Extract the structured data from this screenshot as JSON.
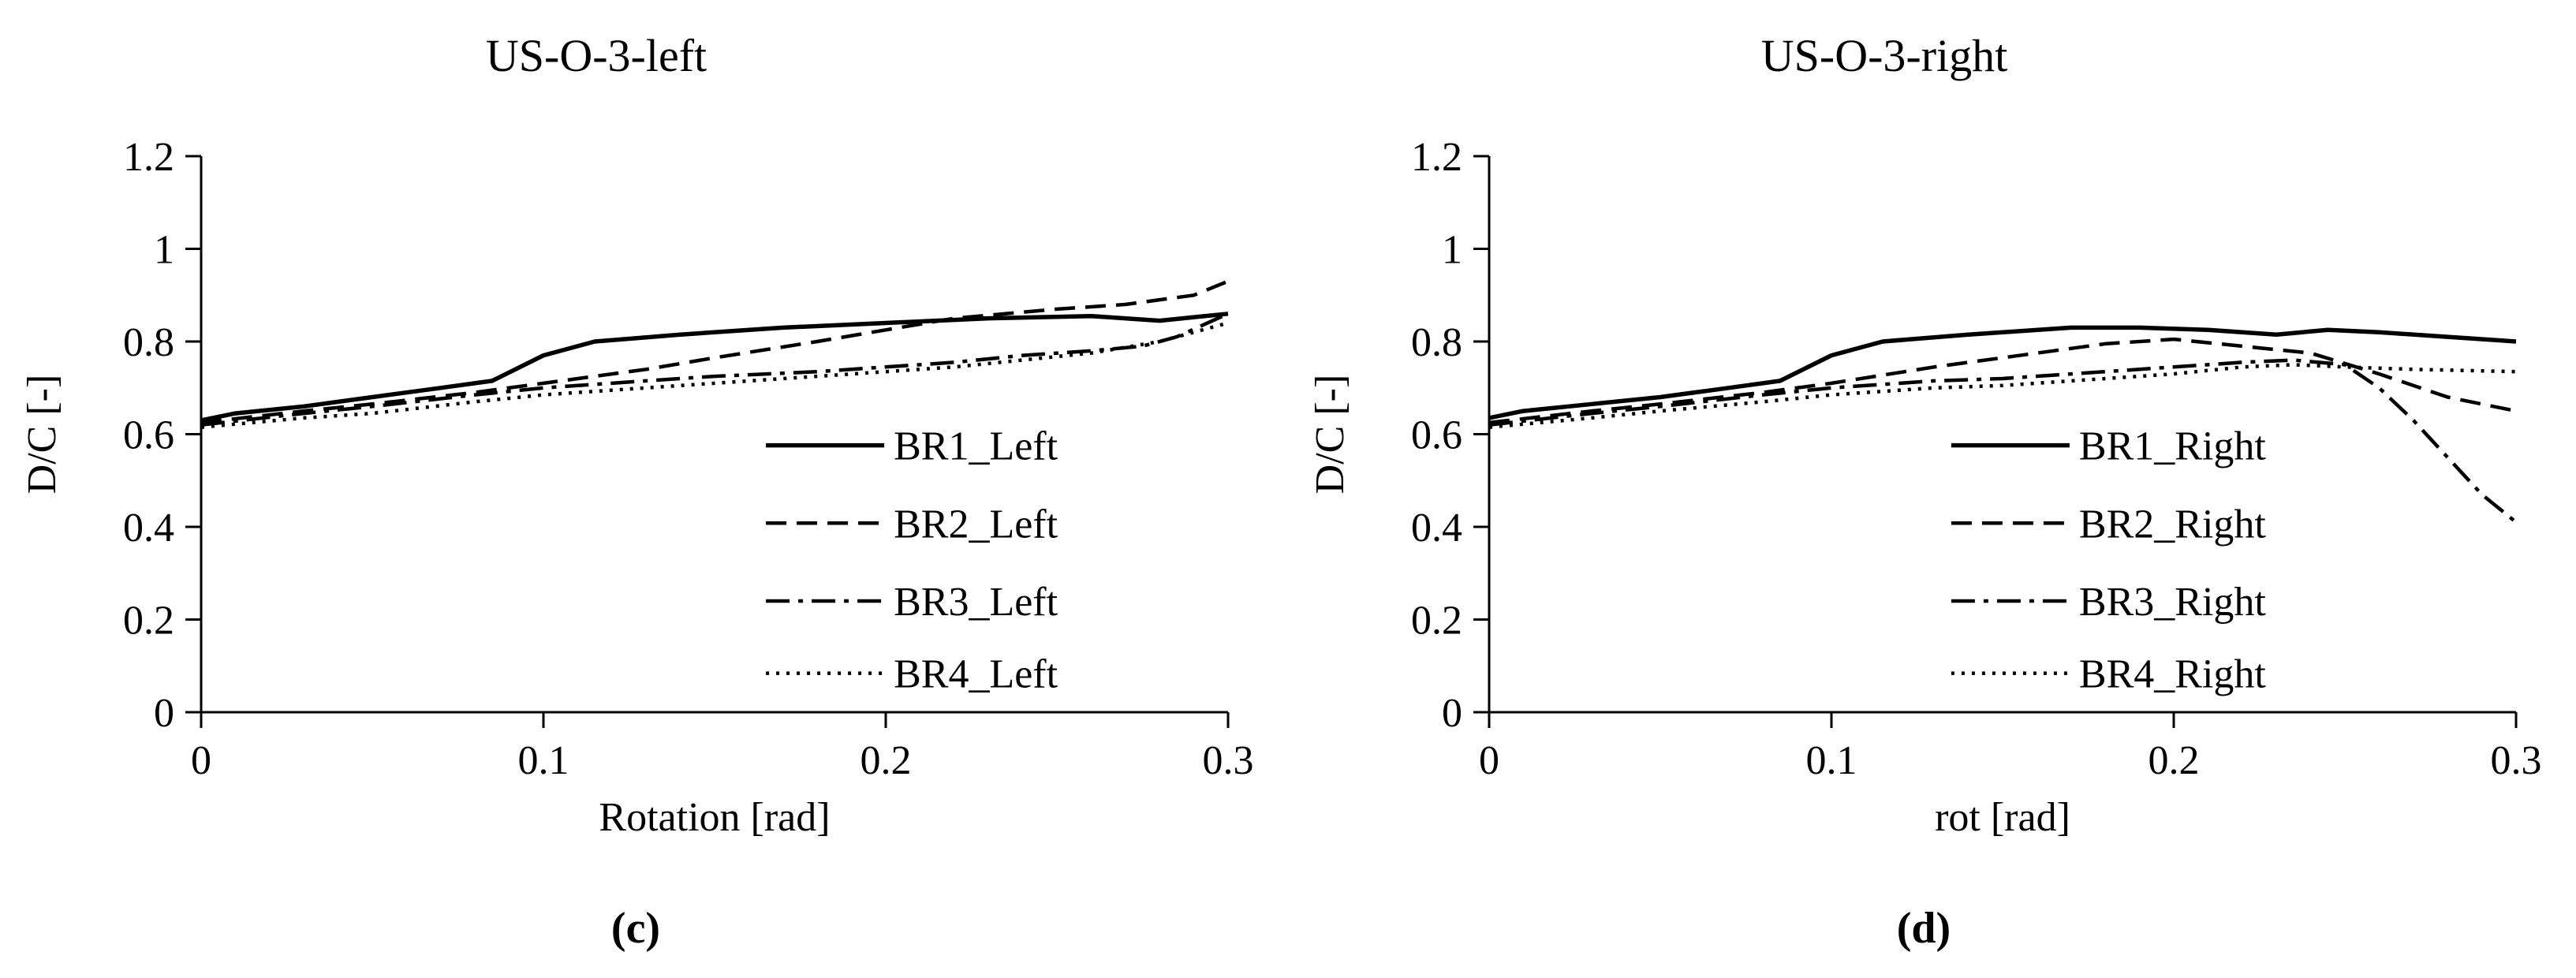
{
  "figure": {
    "description": "Two-panel line chart figure comparing D/C ratio versus rotation for four bearings (left and right)"
  },
  "chart_data": [
    {
      "type": "line",
      "title": "US-O-3-left",
      "sub_label": "(c)",
      "xlabel": "Rotation [rad]",
      "ylabel": "D/C [-]",
      "xlim": [
        0,
        0.3
      ],
      "ylim": [
        0,
        1.2
      ],
      "xticks": [
        "0",
        "0.1",
        "0.2",
        "0.3"
      ],
      "yticks": [
        "0",
        "0.2",
        "0.4",
        "0.6",
        "0.8",
        "1",
        "1.2"
      ],
      "grid": false,
      "line_color": "#000000",
      "legend": {
        "position": "inside-right-lower",
        "x_frac": 0.55,
        "row_fracs": [
          0.52,
          0.66,
          0.8,
          0.93
        ]
      },
      "series": [
        {
          "name": "BR1_Left",
          "style": "solid",
          "width": 5.5,
          "x": [
            0,
            0.01,
            0.03,
            0.05,
            0.07,
            0.085,
            0.1,
            0.115,
            0.14,
            0.17,
            0.2,
            0.23,
            0.26,
            0.28,
            0.3
          ],
          "y": [
            0.63,
            0.645,
            0.66,
            0.68,
            0.7,
            0.715,
            0.77,
            0.8,
            0.815,
            0.83,
            0.84,
            0.85,
            0.855,
            0.845,
            0.86
          ]
        },
        {
          "name": "BR2_Left",
          "style": "dashed",
          "width": 4.5,
          "x": [
            0,
            0.03,
            0.05,
            0.08,
            0.1,
            0.13,
            0.15,
            0.18,
            0.2,
            0.22,
            0.25,
            0.27,
            0.29,
            0.3
          ],
          "y": [
            0.625,
            0.65,
            0.665,
            0.69,
            0.71,
            0.74,
            0.765,
            0.8,
            0.825,
            0.85,
            0.87,
            0.88,
            0.9,
            0.93
          ]
        },
        {
          "name": "BR3_Left",
          "style": "dashdot",
          "width": 4.5,
          "x": [
            0,
            0.03,
            0.05,
            0.08,
            0.1,
            0.13,
            0.15,
            0.18,
            0.2,
            0.22,
            0.24,
            0.26,
            0.275,
            0.285,
            0.3
          ],
          "y": [
            0.62,
            0.645,
            0.66,
            0.685,
            0.7,
            0.715,
            0.725,
            0.735,
            0.745,
            0.755,
            0.77,
            0.78,
            0.79,
            0.81,
            0.86
          ]
        },
        {
          "name": "BR4_Left",
          "style": "dotted",
          "width": 4.5,
          "x": [
            0,
            0.03,
            0.05,
            0.08,
            0.1,
            0.13,
            0.15,
            0.18,
            0.2,
            0.22,
            0.24,
            0.26,
            0.28,
            0.3
          ],
          "y": [
            0.615,
            0.635,
            0.645,
            0.67,
            0.685,
            0.7,
            0.71,
            0.725,
            0.735,
            0.745,
            0.76,
            0.775,
            0.8,
            0.84
          ]
        }
      ]
    },
    {
      "type": "line",
      "title": "US-O-3-right",
      "sub_label": "(d)",
      "xlabel": "rot [rad]",
      "ylabel": "D/C [-]",
      "xlim": [
        0,
        0.3
      ],
      "ylim": [
        0,
        1.2
      ],
      "xticks": [
        "0",
        "0.1",
        "0.2",
        "0.3"
      ],
      "yticks": [
        "0",
        "0.2",
        "0.4",
        "0.6",
        "0.8",
        "1",
        "1.2"
      ],
      "grid": false,
      "line_color": "#000000",
      "legend": {
        "position": "inside-right-lower",
        "x_frac": 0.45,
        "row_fracs": [
          0.52,
          0.66,
          0.8,
          0.93
        ]
      },
      "series": [
        {
          "name": "BR1_Right",
          "style": "solid",
          "width": 5.5,
          "x": [
            0,
            0.01,
            0.03,
            0.05,
            0.07,
            0.085,
            0.1,
            0.115,
            0.14,
            0.17,
            0.19,
            0.21,
            0.23,
            0.245,
            0.26,
            0.28,
            0.3
          ],
          "y": [
            0.635,
            0.65,
            0.665,
            0.68,
            0.7,
            0.715,
            0.77,
            0.8,
            0.815,
            0.83,
            0.83,
            0.825,
            0.815,
            0.825,
            0.82,
            0.81,
            0.8
          ]
        },
        {
          "name": "BR2_Right",
          "style": "dashed",
          "width": 4.5,
          "x": [
            0,
            0.03,
            0.05,
            0.08,
            0.1,
            0.13,
            0.15,
            0.18,
            0.2,
            0.22,
            0.24,
            0.26,
            0.28,
            0.3
          ],
          "y": [
            0.625,
            0.65,
            0.665,
            0.69,
            0.71,
            0.745,
            0.765,
            0.795,
            0.805,
            0.79,
            0.775,
            0.73,
            0.68,
            0.65
          ]
        },
        {
          "name": "BR3_Right",
          "style": "dashdot",
          "width": 4.5,
          "x": [
            0,
            0.03,
            0.05,
            0.08,
            0.1,
            0.13,
            0.15,
            0.18,
            0.2,
            0.22,
            0.235,
            0.25,
            0.26,
            0.27,
            0.28,
            0.29,
            0.3
          ],
          "y": [
            0.62,
            0.645,
            0.66,
            0.685,
            0.7,
            0.715,
            0.72,
            0.735,
            0.745,
            0.755,
            0.76,
            0.75,
            0.7,
            0.63,
            0.55,
            0.47,
            0.41
          ]
        },
        {
          "name": "BR4_Right",
          "style": "dotted",
          "width": 4.5,
          "x": [
            0,
            0.03,
            0.05,
            0.08,
            0.1,
            0.13,
            0.15,
            0.18,
            0.2,
            0.22,
            0.235,
            0.25,
            0.27,
            0.3
          ],
          "y": [
            0.615,
            0.635,
            0.65,
            0.67,
            0.685,
            0.7,
            0.705,
            0.72,
            0.73,
            0.745,
            0.75,
            0.745,
            0.74,
            0.735
          ]
        }
      ]
    }
  ]
}
